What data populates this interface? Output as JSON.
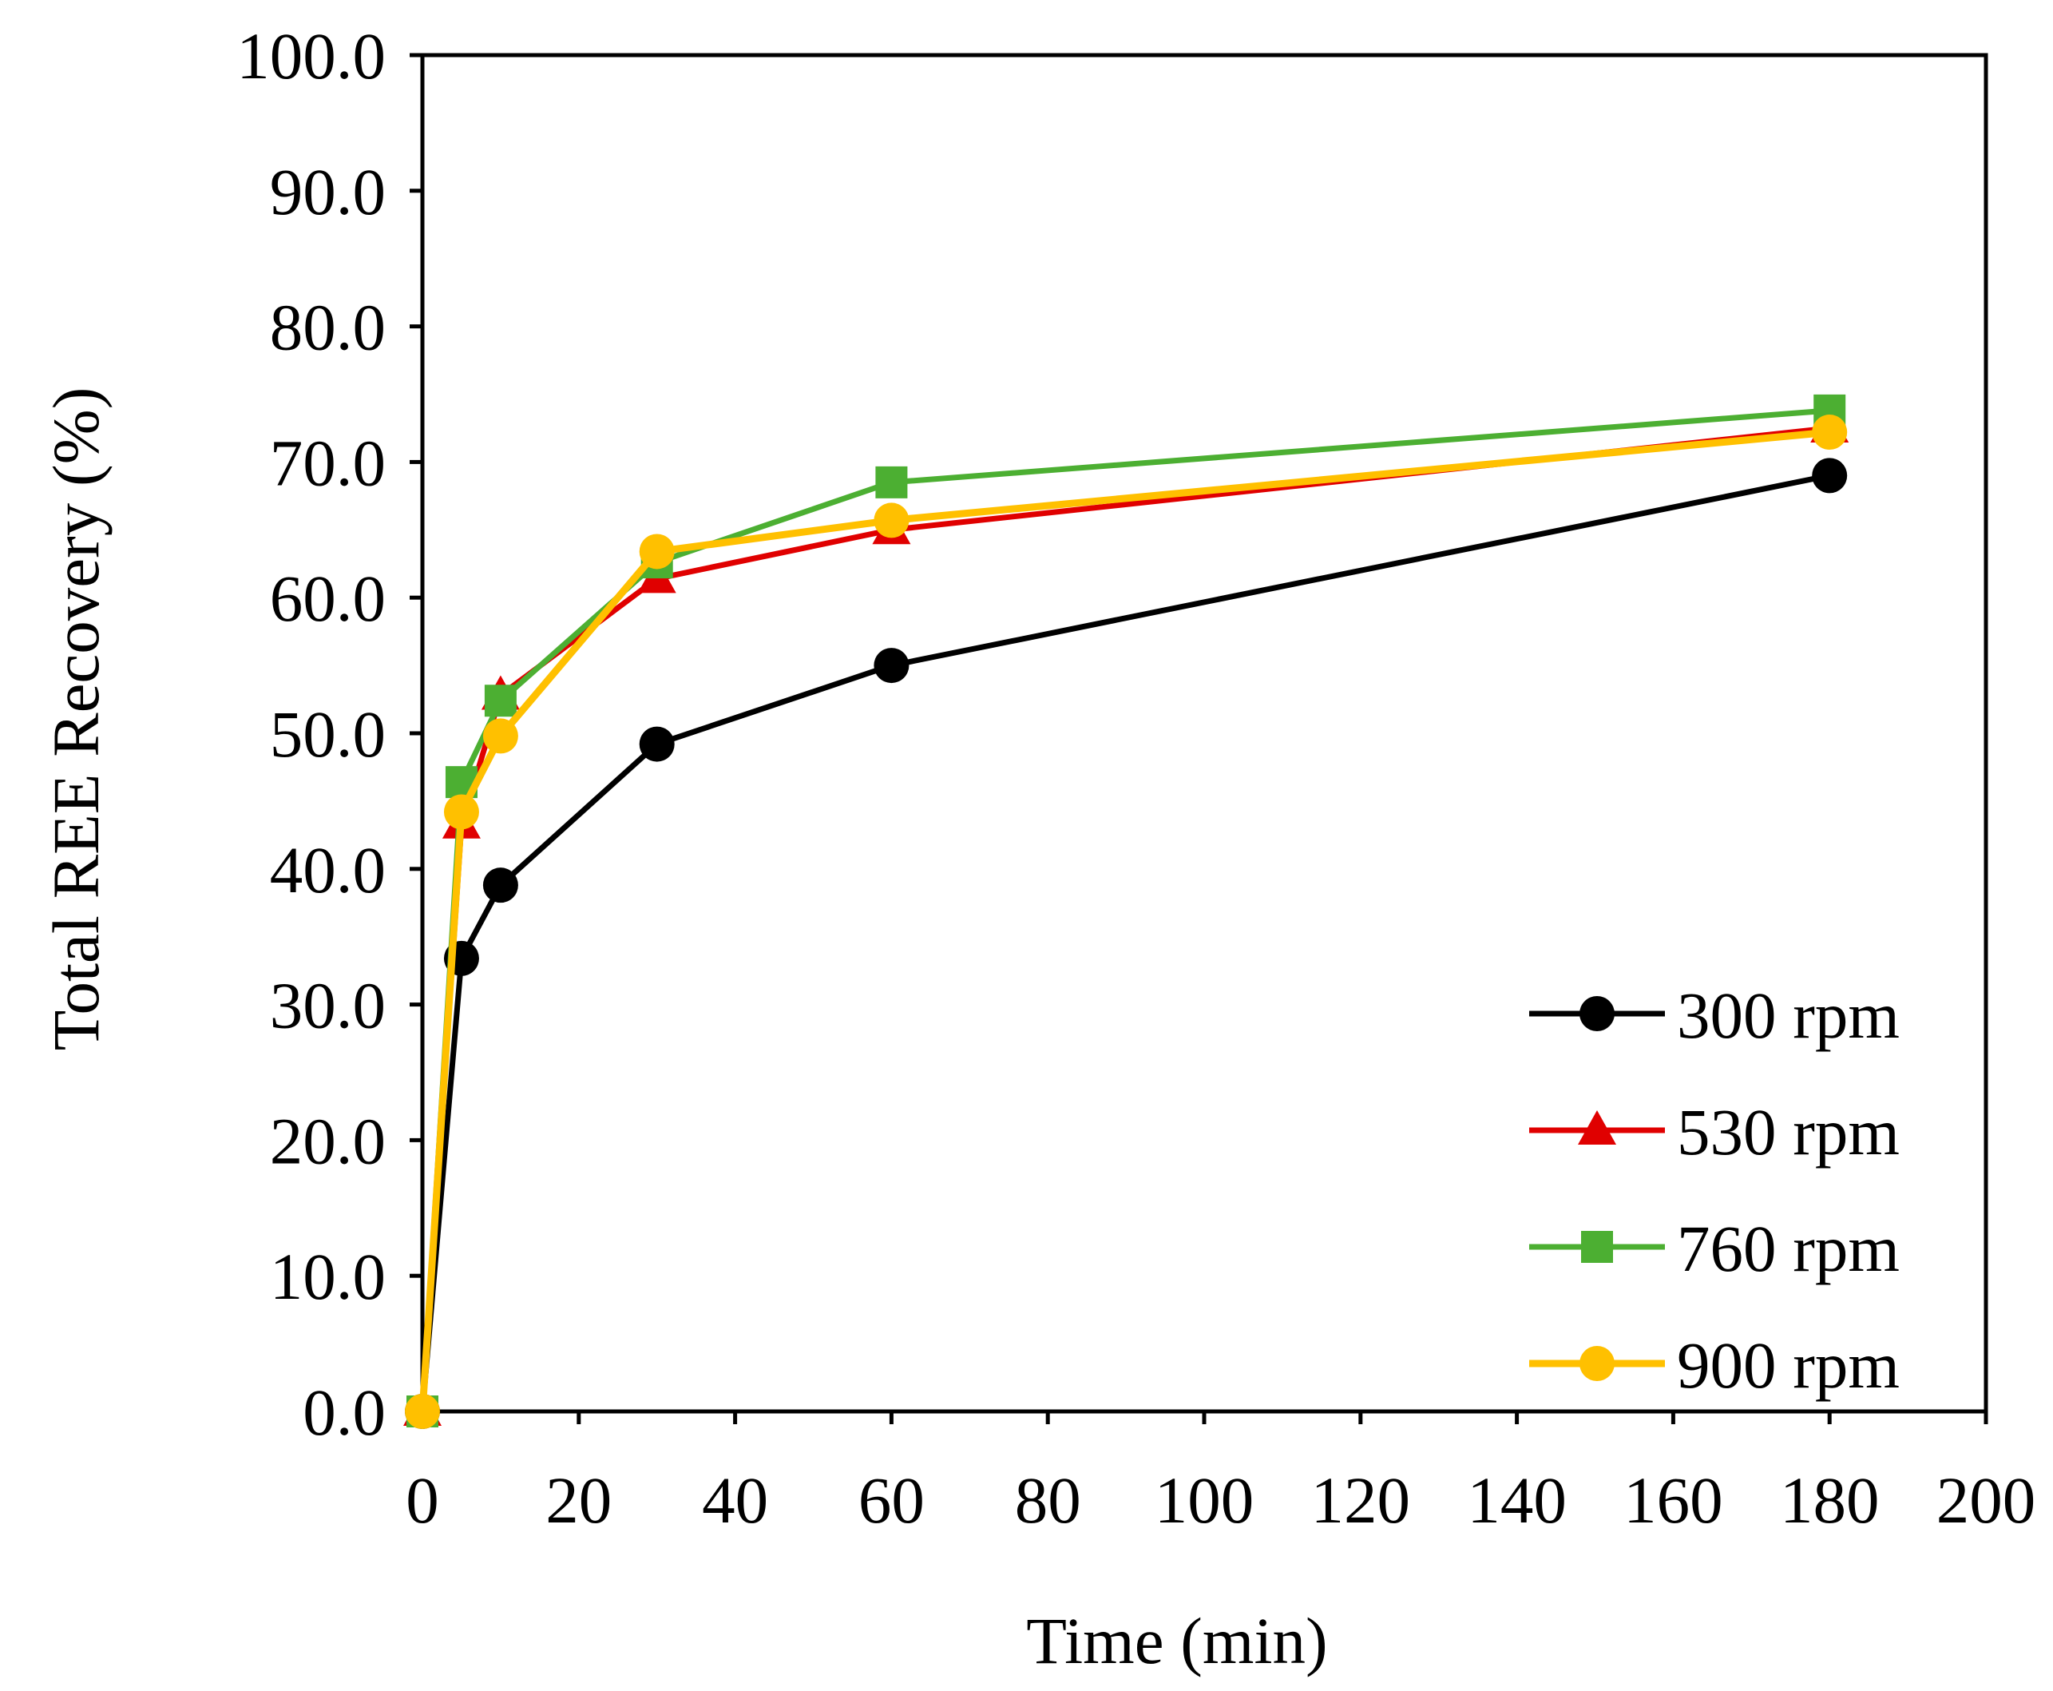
{
  "chart_data": {
    "type": "line",
    "title": "",
    "xlabel": "Time (min)",
    "ylabel": "Total REE Recovery (%)",
    "xlim": [
      0,
      200
    ],
    "ylim": [
      0,
      100
    ],
    "x_ticks": [
      0,
      20,
      40,
      60,
      80,
      100,
      120,
      140,
      160,
      180,
      200
    ],
    "x_tick_labels": [
      "0",
      "20",
      "40",
      "60",
      "80",
      "100",
      "120",
      "140",
      "160",
      "180",
      "200"
    ],
    "y_ticks": [
      0,
      10,
      20,
      30,
      40,
      50,
      60,
      70,
      80,
      90,
      100
    ],
    "y_tick_labels": [
      "0.0",
      "10.0",
      "20.0",
      "30.0",
      "40.0",
      "50.0",
      "60.0",
      "70.0",
      "80.0",
      "90.0",
      "100.0"
    ],
    "grid": false,
    "legend_position": "bottom-right",
    "x": [
      0,
      5,
      10,
      30,
      60,
      180
    ],
    "series": [
      {
        "name": "300 rpm",
        "color": "#000000",
        "marker": "circle",
        "values": [
          0,
          33.4,
          38.8,
          49.2,
          55.0,
          69.0
        ]
      },
      {
        "name": "530 rpm",
        "color": "#e00000",
        "marker": "triangle",
        "values": [
          0,
          43.3,
          52.8,
          61.4,
          65.0,
          72.5
        ]
      },
      {
        "name": "760 rpm",
        "color": "#4caf32",
        "marker": "square",
        "values": [
          0,
          46.4,
          52.4,
          62.6,
          68.5,
          73.8
        ]
      },
      {
        "name": "900 rpm",
        "color": "#ffc000",
        "marker": "circle",
        "values": [
          0,
          44.2,
          49.8,
          63.4,
          65.7,
          72.2
        ]
      }
    ]
  }
}
